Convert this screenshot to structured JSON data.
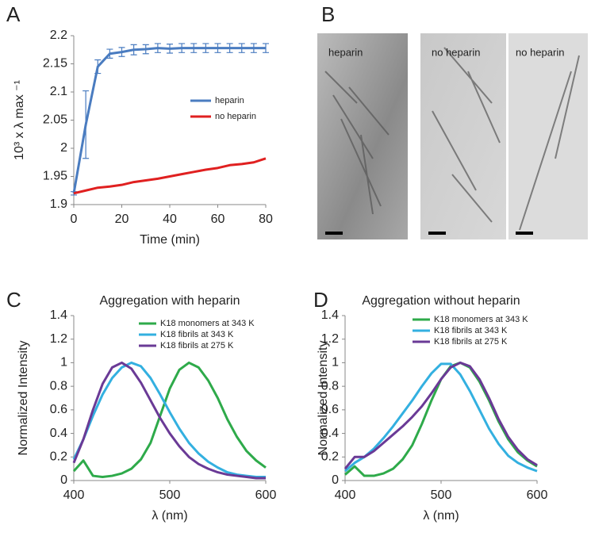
{
  "chart_data": [
    {
      "type": "line",
      "panel": "A",
      "xlabel": "Time (min)",
      "ylabel": "10³ x λ max ⁻¹",
      "x": [
        0,
        5,
        10,
        15,
        20,
        25,
        30,
        35,
        40,
        45,
        50,
        55,
        60,
        65,
        70,
        75,
        80
      ],
      "series": [
        {
          "name": "heparin",
          "color": "#4a7cc0",
          "values": [
            1.92,
            2.042,
            2.145,
            2.168,
            2.171,
            2.175,
            2.176,
            2.178,
            2.177,
            2.178,
            2.178,
            2.178,
            2.178,
            2.178,
            2.178,
            2.178,
            2.178
          ],
          "errors": [
            0.003,
            0.06,
            0.012,
            0.008,
            0.008,
            0.009,
            0.008,
            0.008,
            0.008,
            0.008,
            0.008,
            0.008,
            0.008,
            0.008,
            0.008,
            0.008,
            0.008
          ]
        },
        {
          "name": "no heparin",
          "color": "#e02020",
          "values": [
            1.92,
            1.925,
            1.93,
            1.932,
            1.935,
            1.94,
            1.943,
            1.946,
            1.95,
            1.954,
            1.958,
            1.962,
            1.965,
            1.97,
            1.972,
            1.975,
            1.982
          ]
        }
      ],
      "xlim": [
        0,
        80
      ],
      "xticks": [
        0,
        20,
        40,
        60,
        80
      ],
      "ylim": [
        1.9,
        2.2
      ],
      "yticks": [
        1.9,
        1.95,
        2,
        2.05,
        2.1,
        2.15,
        2.2
      ],
      "grid": false
    },
    {
      "type": "line",
      "panel": "C",
      "title": "Aggregation with heparin",
      "xlabel": "λ (nm)",
      "ylabel": "Normalized Intensity",
      "x": [
        400,
        410,
        420,
        430,
        440,
        450,
        460,
        470,
        480,
        490,
        500,
        510,
        520,
        530,
        540,
        550,
        560,
        570,
        580,
        590,
        600
      ],
      "series": [
        {
          "name": "K18 monomers at 343 K",
          "color": "#2eaa4a",
          "values": [
            0.08,
            0.17,
            0.04,
            0.03,
            0.04,
            0.06,
            0.1,
            0.18,
            0.32,
            0.55,
            0.78,
            0.94,
            1,
            0.96,
            0.85,
            0.7,
            0.52,
            0.37,
            0.25,
            0.17,
            0.11
          ]
        },
        {
          "name": "K18 fibrils at 343 K",
          "color": "#33b0e0",
          "values": [
            0.18,
            0.35,
            0.55,
            0.73,
            0.87,
            0.96,
            1,
            0.97,
            0.87,
            0.73,
            0.58,
            0.44,
            0.32,
            0.23,
            0.16,
            0.11,
            0.07,
            0.05,
            0.04,
            0.03,
            0.03
          ]
        },
        {
          "name": "K18 fibrils at 275 K",
          "color": "#6a3a96",
          "values": [
            0.15,
            0.35,
            0.6,
            0.82,
            0.96,
            1,
            0.95,
            0.83,
            0.68,
            0.53,
            0.4,
            0.29,
            0.2,
            0.14,
            0.1,
            0.07,
            0.05,
            0.04,
            0.03,
            0.02,
            0.02
          ]
        }
      ],
      "xlim": [
        400,
        600
      ],
      "xticks": [
        400,
        500,
        600
      ],
      "ylim": [
        0,
        1.4
      ],
      "yticks": [
        0,
        0.2,
        0.4,
        0.6,
        0.8,
        1,
        1.2,
        1.4
      ],
      "grid": false
    },
    {
      "type": "line",
      "panel": "D",
      "title": "Aggregation without heparin",
      "xlabel": "λ (nm)",
      "ylabel": "Normalized Intensity",
      "x": [
        400,
        410,
        420,
        430,
        440,
        450,
        460,
        470,
        480,
        490,
        500,
        510,
        520,
        530,
        540,
        550,
        560,
        570,
        580,
        590,
        600
      ],
      "series": [
        {
          "name": "K18 monomers at 343 K",
          "color": "#2eaa4a",
          "values": [
            0.05,
            0.12,
            0.04,
            0.04,
            0.06,
            0.1,
            0.18,
            0.3,
            0.48,
            0.68,
            0.86,
            0.97,
            1,
            0.96,
            0.84,
            0.68,
            0.5,
            0.35,
            0.24,
            0.17,
            0.12
          ]
        },
        {
          "name": "K18 fibrils at 343 K",
          "color": "#33b0e0",
          "values": [
            0.08,
            0.15,
            0.2,
            0.27,
            0.36,
            0.46,
            0.57,
            0.68,
            0.8,
            0.91,
            0.99,
            0.99,
            0.9,
            0.76,
            0.6,
            0.44,
            0.31,
            0.21,
            0.15,
            0.11,
            0.08
          ]
        },
        {
          "name": "K18 fibrils at 275 K",
          "color": "#6a3a96",
          "values": [
            0.1,
            0.2,
            0.2,
            0.25,
            0.32,
            0.39,
            0.46,
            0.54,
            0.63,
            0.74,
            0.86,
            0.96,
            1,
            0.97,
            0.86,
            0.7,
            0.52,
            0.37,
            0.26,
            0.18,
            0.13
          ]
        }
      ],
      "xlim": [
        400,
        600
      ],
      "xticks": [
        400,
        500,
        600
      ],
      "ylim": [
        0,
        1.4
      ],
      "yticks": [
        0,
        0.2,
        0.4,
        0.6,
        0.8,
        1,
        1.2,
        1.4
      ],
      "grid": false
    }
  ],
  "micrographs": {
    "panel": "B",
    "labels": [
      "heparin",
      "no heparin",
      "no heparin"
    ]
  }
}
